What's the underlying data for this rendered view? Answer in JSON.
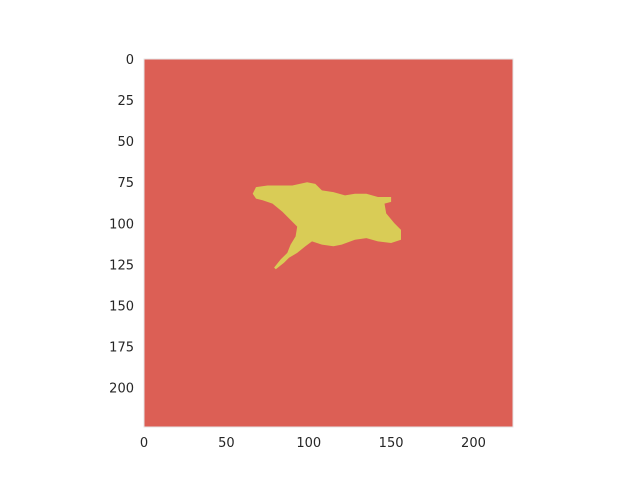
{
  "chart_data": {
    "type": "heatmap",
    "title": "",
    "xlabel": "",
    "ylabel": "",
    "image_size": [
      224,
      224
    ],
    "xlim": [
      0,
      224
    ],
    "ylim": [
      224,
      0
    ],
    "x_ticks": [
      0,
      50,
      100,
      150,
      200
    ],
    "y_ticks": [
      0,
      25,
      50,
      75,
      100,
      125,
      150,
      175,
      200
    ],
    "grid": false,
    "legend": "none",
    "background_class": {
      "value": 0,
      "color": "#dc5f55"
    },
    "foreground_class": {
      "value": 1,
      "color": "#d9cc56"
    },
    "mask_outline": [
      [
        68,
        78
      ],
      [
        75,
        77
      ],
      [
        90,
        77
      ],
      [
        99,
        75
      ],
      [
        104,
        76
      ],
      [
        108,
        80
      ],
      [
        115,
        81
      ],
      [
        122,
        83
      ],
      [
        128,
        82
      ],
      [
        135,
        82
      ],
      [
        142,
        84
      ],
      [
        150,
        84
      ],
      [
        150,
        87
      ],
      [
        146,
        88
      ],
      [
        147,
        94
      ],
      [
        152,
        100
      ],
      [
        156,
        104
      ],
      [
        156,
        110
      ],
      [
        150,
        112
      ],
      [
        142,
        111
      ],
      [
        135,
        109
      ],
      [
        128,
        110
      ],
      [
        120,
        113
      ],
      [
        115,
        114
      ],
      [
        108,
        113
      ],
      [
        102,
        111
      ],
      [
        98,
        114
      ],
      [
        93,
        118
      ],
      [
        88,
        121
      ],
      [
        85,
        124
      ],
      [
        80,
        128
      ],
      [
        79,
        127
      ],
      [
        83,
        122
      ],
      [
        87,
        118
      ],
      [
        89,
        113
      ],
      [
        92,
        108
      ],
      [
        93,
        102
      ],
      [
        89,
        98
      ],
      [
        84,
        93
      ],
      [
        78,
        88
      ],
      [
        72,
        86
      ],
      [
        68,
        85
      ],
      [
        66,
        82
      ]
    ]
  }
}
